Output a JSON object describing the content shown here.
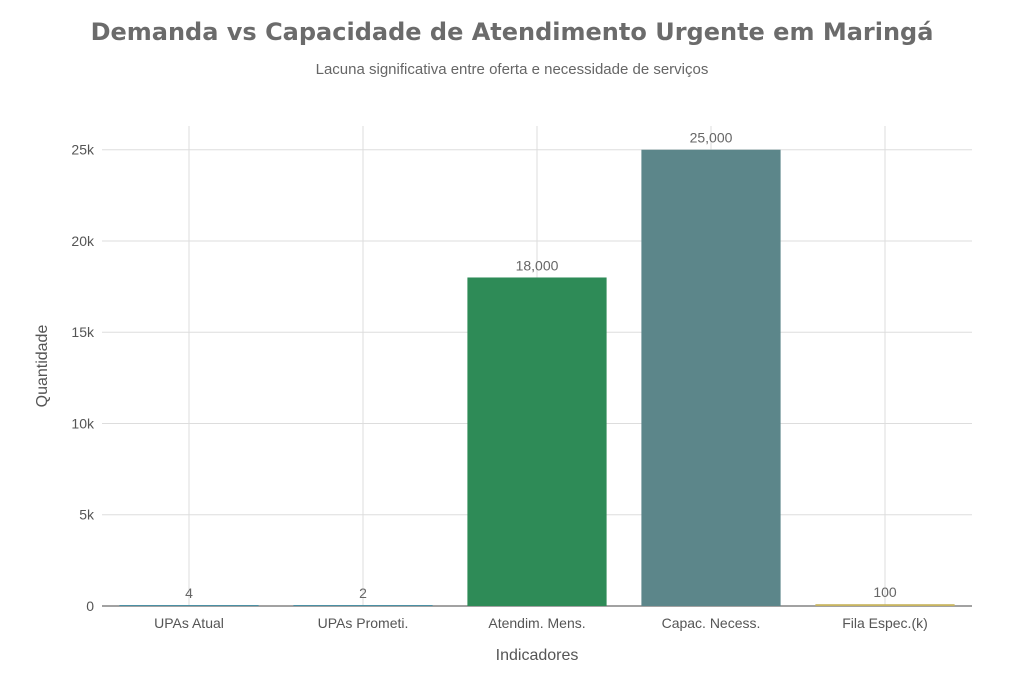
{
  "chart_data": {
    "type": "bar",
    "title": "Demanda vs Capacidade de Atendimento Urgente em Maringá",
    "subtitle": "Lacuna significativa entre oferta e necessidade de serviços",
    "xlabel": "Indicadores",
    "ylabel": "Quantidade",
    "categories": [
      "UPAs Atual",
      "UPAs Prometi.",
      "Atendim. Mens.",
      "Capac. Necess.",
      "Fila Espec.(k)"
    ],
    "values": [
      4,
      2,
      18000,
      25000,
      100
    ],
    "value_labels": [
      "4",
      "2",
      "18,000",
      "25,000",
      "100"
    ],
    "colors": [
      "#4a90a4",
      "#4a90a4",
      "#2e8b57",
      "#5c868a",
      "#c8b560"
    ],
    "ylim": [
      0,
      26300
    ],
    "yticks": [
      0,
      5000,
      10000,
      15000,
      20000,
      25000
    ],
    "ytick_labels": [
      "0",
      "5k",
      "10k",
      "15k",
      "20k",
      "25k"
    ],
    "grid": true
  }
}
